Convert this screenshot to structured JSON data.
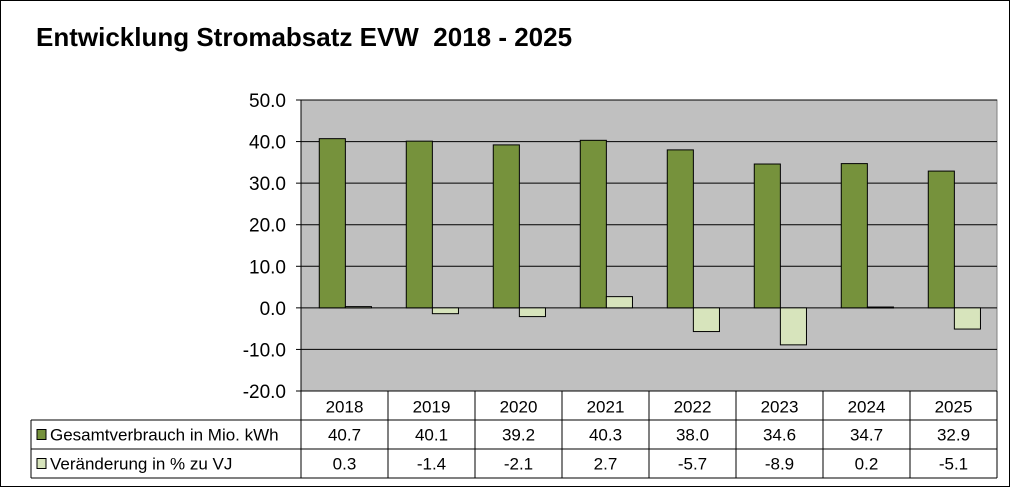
{
  "chart_data": {
    "type": "bar",
    "title": "Entwicklung Stromabsatz EVW  2018 - 2025",
    "xlabel": "",
    "ylabel": "",
    "ylim": [
      -20,
      50
    ],
    "yticks": [
      "50.0",
      "40.0",
      "30.0",
      "20.0",
      "10.0",
      "0.0",
      "-10.0",
      "-20.0"
    ],
    "grid": true,
    "categories": [
      "2018",
      "2019",
      "2020",
      "2021",
      "2022",
      "2023",
      "2024",
      "2025"
    ],
    "series": [
      {
        "name": "Gesamtverbrauch in Mio. kWh",
        "color": "#76923C",
        "values": [
          40.7,
          40.1,
          39.2,
          40.3,
          38.0,
          34.6,
          34.7,
          32.9
        ],
        "labels": [
          "40.7",
          "40.1",
          "39.2",
          "40.3",
          "38.0",
          "34.6",
          "34.7",
          "32.9"
        ]
      },
      {
        "name": "Veränderung in % zu VJ",
        "color": "#D7E4BC",
        "values": [
          0.3,
          -1.4,
          -2.1,
          2.7,
          -5.7,
          -8.9,
          0.2,
          -5.1
        ],
        "labels": [
          "0.3",
          "-1.4",
          "-2.1",
          "2.7",
          "-5.7",
          "-8.9",
          "0.2",
          "-5.1"
        ]
      }
    ],
    "plot_background": "#C0C0C0",
    "data_table": true
  }
}
